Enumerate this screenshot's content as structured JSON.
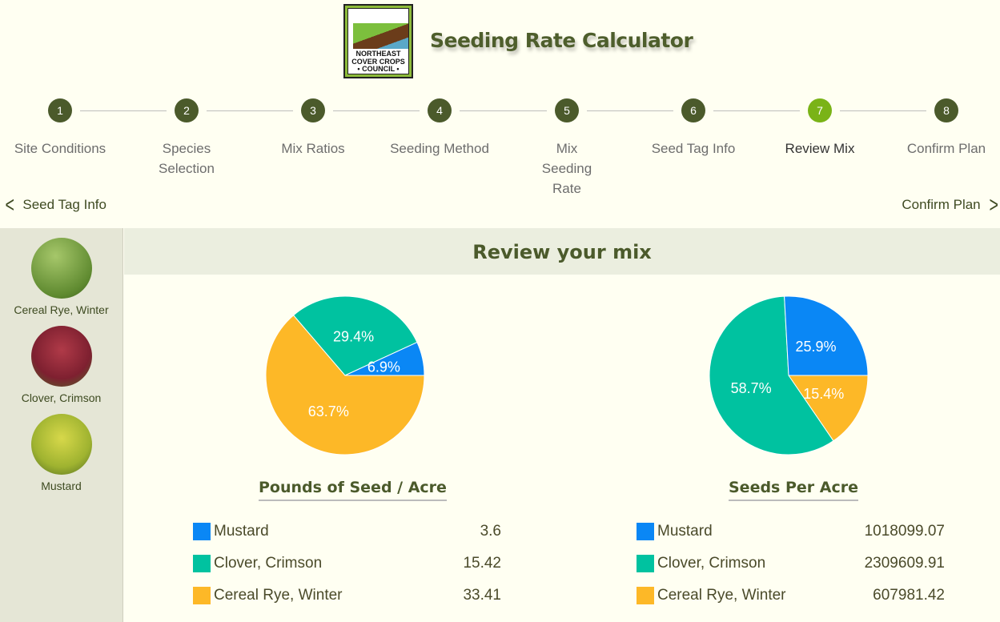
{
  "header": {
    "title": "Seeding Rate Calculator",
    "logo_text": [
      "NORTHEAST",
      "COVER CROPS",
      "• COUNCIL •"
    ]
  },
  "steps": [
    {
      "num": "1",
      "label": "Site Conditions"
    },
    {
      "num": "2",
      "label": "Species Selection"
    },
    {
      "num": "3",
      "label": "Mix Ratios"
    },
    {
      "num": "4",
      "label": "Seeding Method"
    },
    {
      "num": "5",
      "label": "Mix Seeding Rate"
    },
    {
      "num": "6",
      "label": "Seed Tag Info"
    },
    {
      "num": "7",
      "label": "Review Mix",
      "active": true
    },
    {
      "num": "8",
      "label": "Confirm Plan"
    }
  ],
  "nav": {
    "back": "Seed Tag Info",
    "next": "Confirm Plan"
  },
  "sidebar": [
    {
      "label": "Cereal Rye, Winter"
    },
    {
      "label": "Clover, Crimson"
    },
    {
      "label": "Mustard"
    }
  ],
  "main": {
    "title": "Review your mix"
  },
  "chart_data": [
    {
      "type": "pie",
      "title": "Pounds of Seed / Acre",
      "categories": [
        "Mustard",
        "Clover, Crimson",
        "Cereal Rye, Winter"
      ],
      "values": [
        3.6,
        15.42,
        33.41
      ],
      "labels": [
        "6.9%",
        "29.4%",
        "63.7%"
      ],
      "colors": [
        "#0a87f5",
        "#00c2a0",
        "#fdb827"
      ]
    },
    {
      "type": "pie",
      "title": "Seeds Per Acre",
      "categories": [
        "Mustard",
        "Clover, Crimson",
        "Cereal Rye, Winter"
      ],
      "values": [
        1018099.07,
        2309609.91,
        607981.42
      ],
      "labels": [
        "25.9%",
        "58.7%",
        "15.4%"
      ],
      "colors": [
        "#0a87f5",
        "#00c2a0",
        "#fdb827"
      ]
    }
  ]
}
